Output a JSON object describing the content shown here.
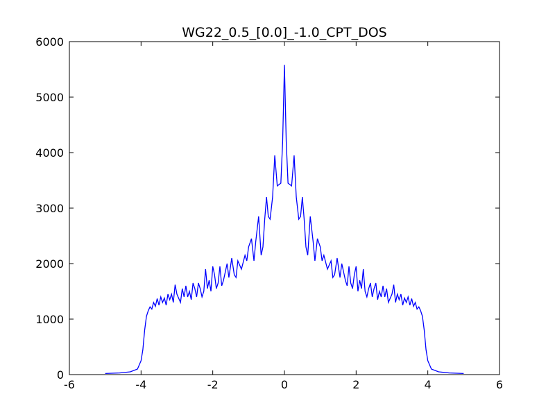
{
  "chart_data": {
    "type": "line",
    "title": "WG22_0.5_[0.0]_-1.0_CPT_DOS",
    "x": [
      -5.0,
      -4.6,
      -4.3,
      -4.1,
      -4.0,
      -3.95,
      -3.9,
      -3.85,
      -3.8,
      -3.75,
      -3.7,
      -3.65,
      -3.6,
      -3.55,
      -3.5,
      -3.45,
      -3.4,
      -3.35,
      -3.3,
      -3.25,
      -3.2,
      -3.15,
      -3.1,
      -3.05,
      -3.0,
      -2.9,
      -2.85,
      -2.8,
      -2.75,
      -2.7,
      -2.65,
      -2.6,
      -2.55,
      -2.5,
      -2.45,
      -2.4,
      -2.35,
      -2.3,
      -2.25,
      -2.2,
      -2.15,
      -2.1,
      -2.05,
      -2.0,
      -1.95,
      -1.9,
      -1.85,
      -1.8,
      -1.75,
      -1.7,
      -1.6,
      -1.55,
      -1.47,
      -1.4,
      -1.35,
      -1.3,
      -1.2,
      -1.1,
      -1.05,
      -1.0,
      -0.92,
      -0.85,
      -0.8,
      -0.72,
      -0.65,
      -0.6,
      -0.55,
      -0.5,
      -0.45,
      -0.4,
      -0.33,
      -0.27,
      -0.2,
      -0.1,
      -0.05,
      0,
      0.05,
      0.1,
      0.2,
      0.27,
      0.33,
      0.4,
      0.45,
      0.5,
      0.55,
      0.6,
      0.65,
      0.72,
      0.8,
      0.85,
      0.92,
      1.0,
      1.05,
      1.1,
      1.2,
      1.3,
      1.35,
      1.4,
      1.47,
      1.55,
      1.6,
      1.7,
      1.75,
      1.8,
      1.85,
      1.9,
      1.95,
      2.0,
      2.05,
      2.1,
      2.15,
      2.2,
      2.25,
      2.3,
      2.35,
      2.4,
      2.45,
      2.5,
      2.55,
      2.6,
      2.65,
      2.7,
      2.75,
      2.8,
      2.85,
      2.9,
      3.0,
      3.05,
      3.1,
      3.15,
      3.2,
      3.25,
      3.3,
      3.35,
      3.4,
      3.45,
      3.5,
      3.55,
      3.6,
      3.65,
      3.7,
      3.75,
      3.8,
      3.85,
      3.9,
      3.95,
      4.0,
      4.1,
      4.3,
      4.6,
      5.0
    ],
    "series": [
      {
        "color": "#0000ff",
        "values": [
          20,
          30,
          50,
          100,
          250,
          450,
          800,
          1050,
          1150,
          1220,
          1180,
          1300,
          1230,
          1370,
          1250,
          1400,
          1300,
          1380,
          1250,
          1450,
          1350,
          1450,
          1300,
          1620,
          1450,
          1300,
          1550,
          1400,
          1600,
          1400,
          1500,
          1350,
          1650,
          1550,
          1400,
          1650,
          1550,
          1400,
          1500,
          1900,
          1550,
          1700,
          1500,
          1950,
          1800,
          1550,
          1650,
          1950,
          1600,
          1700,
          2000,
          1750,
          2100,
          1800,
          1750,
          2050,
          1900,
          2150,
          2050,
          2300,
          2450,
          2050,
          2400,
          2850,
          2150,
          2300,
          2800,
          3200,
          2850,
          2800,
          3200,
          3950,
          3400,
          3450,
          4200,
          5580,
          4200,
          3450,
          3400,
          3950,
          3200,
          2800,
          2850,
          3200,
          2800,
          2300,
          2150,
          2850,
          2400,
          2050,
          2450,
          2300,
          2050,
          2150,
          1900,
          2050,
          1750,
          1800,
          2100,
          1750,
          2000,
          1700,
          1600,
          1950,
          1650,
          1550,
          1800,
          1950,
          1500,
          1700,
          1550,
          1900,
          1500,
          1400,
          1550,
          1650,
          1400,
          1550,
          1650,
          1350,
          1500,
          1400,
          1600,
          1400,
          1550,
          1300,
          1450,
          1620,
          1300,
          1450,
          1350,
          1450,
          1250,
          1380,
          1300,
          1400,
          1250,
          1370,
          1230,
          1300,
          1180,
          1220,
          1150,
          1050,
          800,
          450,
          250,
          100,
          50,
          30,
          20
        ]
      }
    ],
    "xlim": [
      -6,
      6
    ],
    "xticks": [
      -6,
      -4,
      -2,
      0,
      2,
      4,
      6
    ],
    "ylim": [
      0,
      6000
    ],
    "yticks": [
      0,
      1000,
      2000,
      3000,
      4000,
      5000,
      6000
    ]
  }
}
